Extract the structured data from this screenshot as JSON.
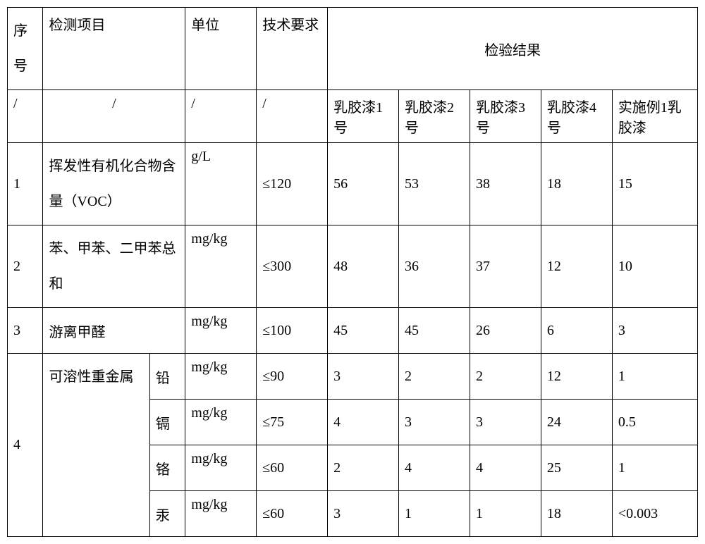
{
  "header": {
    "seq": "序号",
    "item": "检测项目",
    "unit": "单位",
    "req": "技术要求",
    "result": "检验结果"
  },
  "subheader": {
    "slash": "/",
    "r1": "乳胶漆1号",
    "r2": "乳胶漆2号",
    "r3": "乳胶漆3号",
    "r4": "乳胶漆4号",
    "r5": "实施例1乳胶漆"
  },
  "rows": {
    "row1": {
      "seq": "1",
      "item": "挥发性有机化合物含量（VOC）",
      "unit": "g/L",
      "req": "≤120",
      "v": [
        "56",
        "53",
        "38",
        "18",
        "15"
      ]
    },
    "row2": {
      "seq": "2",
      "item": "苯、甲苯、二甲苯总和",
      "unit": "mg/kg",
      "req": "≤300",
      "v": [
        "48",
        "36",
        "37",
        "12",
        "10"
      ]
    },
    "row3": {
      "seq": "3",
      "item": "游离甲醛",
      "unit": "mg/kg",
      "req": "≤100",
      "v": [
        "45",
        "45",
        "26",
        "6",
        "3"
      ]
    },
    "row4": {
      "seq": "4",
      "item": "可溶性重金属",
      "metals": {
        "pb": {
          "name": "铅",
          "unit": "mg/kg",
          "req": "≤90",
          "v": [
            "3",
            "2",
            "2",
            "12",
            "1"
          ]
        },
        "cd": {
          "name": "镉",
          "unit": "mg/kg",
          "req": "≤75",
          "v": [
            "4",
            "3",
            "3",
            "24",
            "0.5"
          ]
        },
        "cr": {
          "name": "铬",
          "unit": "mg/kg",
          "req": "≤60",
          "v": [
            "2",
            "4",
            "4",
            "25",
            "1"
          ]
        },
        "hg": {
          "name": "汞",
          "unit": "mg/kg",
          "req": "≤60",
          "v": [
            "3",
            "1",
            "1",
            "18",
            "<0.003"
          ]
        }
      }
    }
  },
  "style": {
    "border_color": "#000000",
    "background": "#ffffff",
    "text_color": "#000000",
    "font_family": "SimSun",
    "base_fontsize": 20
  }
}
